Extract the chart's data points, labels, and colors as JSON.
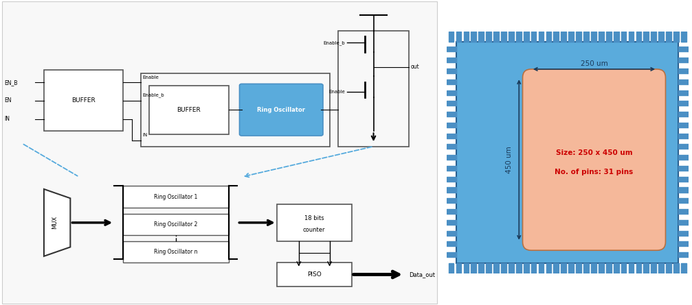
{
  "bg_color": "#ffffff",
  "chip_bg": "#5aabdc",
  "chip_pin_color": "#4a8fc4",
  "chip_inner_color": "#f5b89a",
  "chip_border_color": "#2a6090",
  "dashed_color": "#55aadd",
  "red_text_color": "#cc0000",
  "dark_text_color": "#1a3a5a",
  "size_label": "Size: 250 x 450 um",
  "pins_label": "No. of pins: 31 pins",
  "width_label": "250 um",
  "height_label": "450 um"
}
